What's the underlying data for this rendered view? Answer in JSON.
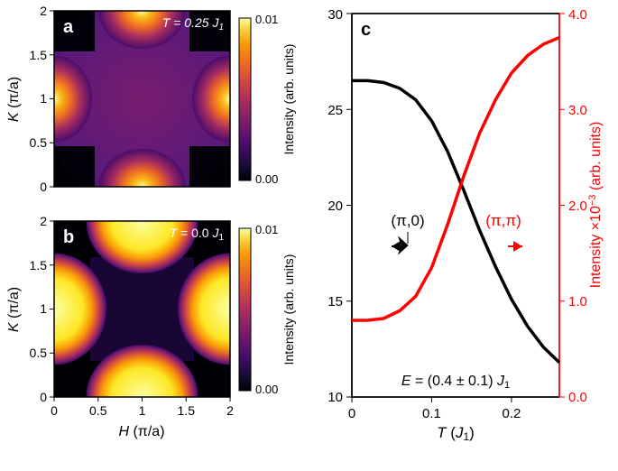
{
  "panel_a": {
    "type": "heatmap",
    "label": "a",
    "annotation": "T = 0.25 J₁",
    "xlabel": "H (π/a)",
    "ylabel": "K (π/a)",
    "cbar_label": "Intensity (arb. units)",
    "xlim": [
      0,
      2
    ],
    "ylim": [
      0,
      2
    ],
    "xticks": [
      0,
      0.5,
      1,
      1.5,
      2
    ],
    "yticks": [
      0,
      0.5,
      1,
      1.5,
      2
    ],
    "cmin": 0.0,
    "cmax": 0.01,
    "cbar_ticks": [
      "0.00",
      "0.01"
    ],
    "colormap": [
      "#000000",
      "#1a0033",
      "#3d0a6b",
      "#6b1d8f",
      "#9333a8",
      "#b8428c",
      "#d6556e",
      "#ea7045",
      "#f59220",
      "#fbb814",
      "#fdde3c",
      "#fcfea4"
    ],
    "background_color": "#000000",
    "annotation_color": "#ffffff"
  },
  "panel_b": {
    "type": "heatmap",
    "label": "b",
    "annotation": "T = 0.0 J₁",
    "xlabel": "H (π/a)",
    "ylabel": "K (π/a)",
    "cbar_label": "Intensity (arb. units)",
    "xlim": [
      0,
      2
    ],
    "ylim": [
      0,
      2
    ],
    "xticks": [
      0,
      0.5,
      1,
      1.5,
      2
    ],
    "yticks": [
      0,
      0.5,
      1,
      1.5,
      2
    ],
    "cmin": 0.0,
    "cmax": 0.01,
    "cbar_ticks": [
      "0.00",
      "0.01"
    ],
    "colormap": [
      "#000000",
      "#1a0033",
      "#3d0a6b",
      "#6b1d8f",
      "#9333a8",
      "#b8428c",
      "#d6556e",
      "#ea7045",
      "#f59220",
      "#fbb814",
      "#fdde3c",
      "#fcfea4"
    ],
    "background_color": "#000000",
    "annotation_color": "#ffffff"
  },
  "panel_c": {
    "type": "line",
    "label": "c",
    "xlabel": "T (J₁)",
    "ylabel_left": "",
    "ylabel_right": "Intensity ×10⁻³ (arb. units)",
    "xlim": [
      0,
      0.26
    ],
    "ylim_left": [
      10,
      30
    ],
    "ylim_right": [
      0.0,
      4.0
    ],
    "xticks": [
      0,
      0.1,
      0.2
    ],
    "yticks_left": [
      10,
      15,
      20,
      25,
      30
    ],
    "yticks_right": [
      0.0,
      1.0,
      2.0,
      3.0,
      4.0
    ],
    "series": [
      {
        "name": "(π,0)",
        "color": "#000000",
        "axis": "left",
        "linewidth": 3,
        "x": [
          0,
          0.02,
          0.04,
          0.06,
          0.08,
          0.1,
          0.12,
          0.14,
          0.16,
          0.18,
          0.2,
          0.22,
          0.24,
          0.26
        ],
        "y": [
          26.5,
          26.5,
          26.4,
          26.1,
          25.5,
          24.4,
          22.8,
          20.8,
          18.7,
          16.8,
          15.1,
          13.7,
          12.6,
          11.8
        ]
      },
      {
        "name": "(π,π)",
        "color": "#ff0000",
        "axis": "right",
        "linewidth": 3,
        "x": [
          0,
          0.02,
          0.04,
          0.06,
          0.08,
          0.1,
          0.12,
          0.14,
          0.16,
          0.18,
          0.2,
          0.22,
          0.24,
          0.26
        ],
        "y": [
          0.8,
          0.8,
          0.82,
          0.9,
          1.05,
          1.35,
          1.8,
          2.3,
          2.75,
          3.1,
          3.38,
          3.56,
          3.68,
          3.75
        ]
      }
    ],
    "anno_left": "(π,0)",
    "anno_right": "(π,π)",
    "anno_bottom": "E = (0.4 ± 0.1) J₁",
    "left_color": "#000000",
    "right_color": "#ff0000",
    "background_color": "#ffffff",
    "tick_fontsize": 14,
    "label_fontsize": 16
  }
}
